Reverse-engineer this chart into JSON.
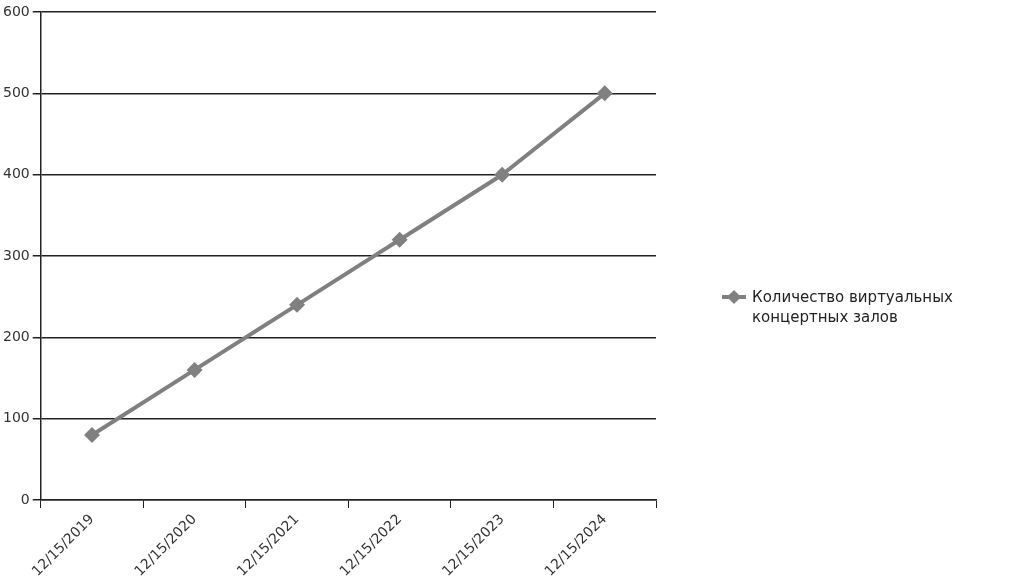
{
  "chart_data": {
    "type": "line",
    "categories": [
      "12/15/2019",
      "12/15/2020",
      "12/15/2021",
      "12/15/2022",
      "12/15/2023",
      "12/15/2024"
    ],
    "series": [
      {
        "name": "Количество виртуальных концертных залов",
        "color": "#808080",
        "values": [
          80,
          160,
          240,
          320,
          400,
          500
        ]
      }
    ],
    "ylim": [
      0,
      600
    ],
    "yticks": [
      0,
      100,
      200,
      300,
      400,
      500,
      600
    ],
    "grid": "y",
    "legend": "right",
    "marker": "diamond",
    "line_style": "solid"
  }
}
